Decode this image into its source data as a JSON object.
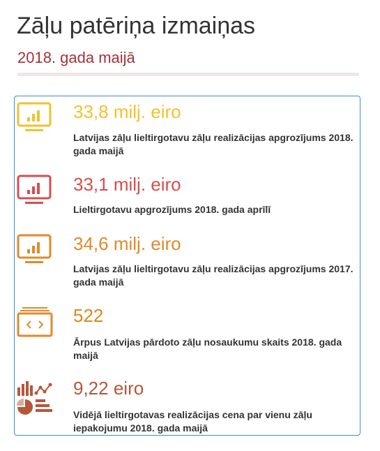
{
  "header": {
    "title": "Zāļu patēriņa izmaiņas",
    "subtitle": "2018. gada  maijā"
  },
  "items": [
    {
      "value": "33,8 milj. eiro",
      "description": "Latvijas zāļu lieltirgotavu zāļu realizācijas apgrozījums 2018. gada maijā"
    },
    {
      "value": "33,1 milj. eiro",
      "description": "Lieltirgotavu apgrozījums 2018. gada aprīlī"
    },
    {
      "value": "34,6 milj. eiro",
      "description": "Latvijas zāļu lieltirgotavu zāļu realizācijas apgrozījums 2017. gada maijā"
    },
    {
      "value": "522",
      "description": "Ārpus Latvijas pārdoto zāļu nosaukumu skaits 2018. gada maijā"
    },
    {
      "value": "9,22 eiro",
      "description": "Vidējā lieltirgotavas realizācijas cena par vienu zāļu iepakojumu 2018. gada maijā"
    }
  ]
}
